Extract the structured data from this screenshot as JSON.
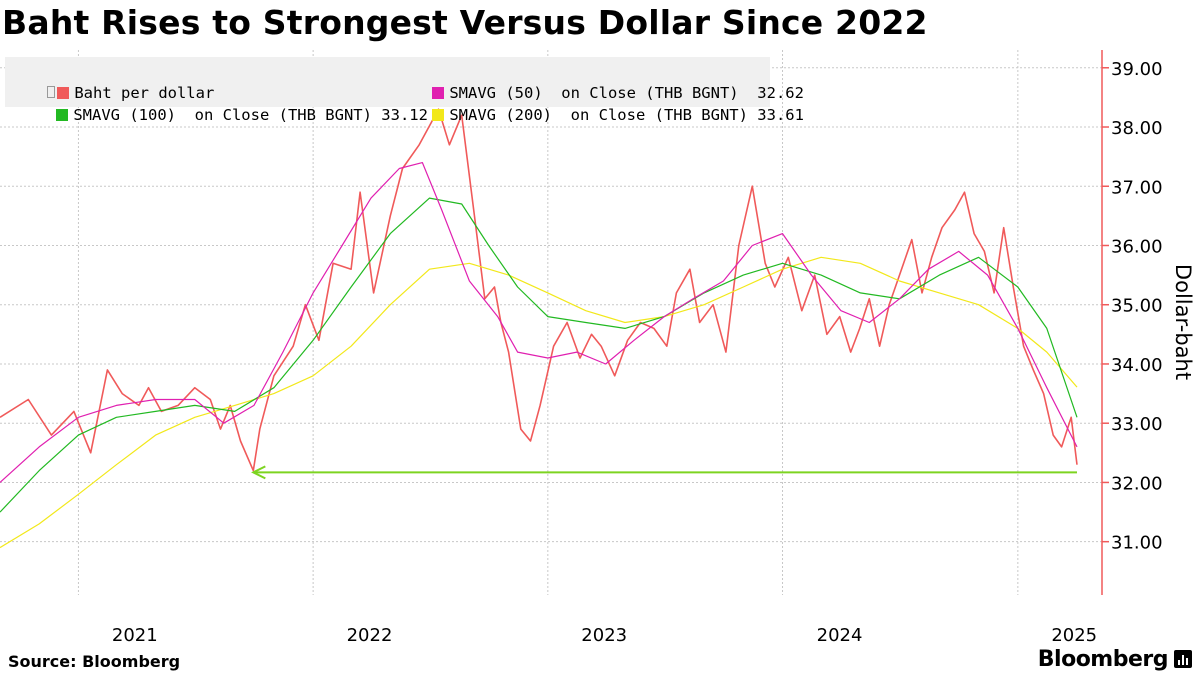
{
  "title": "Baht Rises to Strongest Versus Dollar Since 2022",
  "source": "Source: Bloomberg",
  "brand": "Bloomberg",
  "brand_icon": "bloomberg-terminal-icon",
  "legend": [
    {
      "label": "Baht per dollar",
      "color": "#f05a5a"
    },
    {
      "label": "SMAVG (50)  on Close (THB BGNT)  32.62",
      "color": "#e020b0"
    },
    {
      "label": "SMAVG (100)  on Close (THB BGNT) 33.12",
      "color": "#22b922"
    },
    {
      "label": "SMAVG (200)  on Close (THB BGNT) 33.61",
      "color": "#f2e81a"
    }
  ],
  "chart_data": {
    "type": "line",
    "ylabel": "Dollar-baht",
    "ylim": [
      30.1,
      39.3
    ],
    "yticks": [
      "31.00",
      "32.00",
      "33.00",
      "34.00",
      "35.00",
      "36.00",
      "37.00",
      "38.00",
      "39.00"
    ],
    "xticks": [
      "2021",
      "2022",
      "2023",
      "2024",
      "2025"
    ],
    "x_range": [
      "2020-09-01",
      "2025-04-03"
    ],
    "grid": true,
    "legend_position": "top-left",
    "annotation": {
      "type": "horizontal-arrow",
      "y": 32.17,
      "x_from": "2025-04-03",
      "x_to": "2021-09-30",
      "color": "#7dd420"
    },
    "series": [
      {
        "name": "Baht per dollar",
        "color": "#f05a5a",
        "x": [
          "2020-09-01",
          "2020-10-15",
          "2020-11-20",
          "2020-12-25",
          "2021-01-20",
          "2021-02-15",
          "2021-03-10",
          "2021-04-05",
          "2021-04-20",
          "2021-05-10",
          "2021-06-05",
          "2021-07-01",
          "2021-07-25",
          "2021-08-10",
          "2021-08-25",
          "2021-09-10",
          "2021-09-30",
          "2021-10-10",
          "2021-11-01",
          "2021-12-01",
          "2021-12-20",
          "2022-01-10",
          "2022-02-01",
          "2022-03-01",
          "2022-03-15",
          "2022-04-05",
          "2022-05-01",
          "2022-05-20",
          "2022-06-15",
          "2022-07-15",
          "2022-08-01",
          "2022-08-20",
          "2022-09-10",
          "2022-09-25",
          "2022-10-10",
          "2022-10-20",
          "2022-11-01",
          "2022-11-20",
          "2022-12-05",
          "2022-12-20",
          "2023-01-10",
          "2023-01-31",
          "2023-02-20",
          "2023-03-10",
          "2023-03-25",
          "2023-04-15",
          "2023-05-05",
          "2023-05-25",
          "2023-06-15",
          "2023-07-05",
          "2023-07-20",
          "2023-08-10",
          "2023-08-25",
          "2023-09-15",
          "2023-10-05",
          "2023-10-25",
          "2023-11-15",
          "2023-12-05",
          "2023-12-20",
          "2024-01-10",
          "2024-01-31",
          "2024-02-20",
          "2024-03-10",
          "2024-03-30",
          "2024-04-16",
          "2024-04-30",
          "2024-05-15",
          "2024-05-31",
          "2024-06-15",
          "2024-07-01",
          "2024-07-20",
          "2024-08-05",
          "2024-08-20",
          "2024-09-05",
          "2024-09-25",
          "2024-10-10",
          "2024-10-25",
          "2024-11-10",
          "2024-11-25",
          "2024-12-10",
          "2024-12-25",
          "2025-01-10",
          "2025-01-25",
          "2025-02-10",
          "2025-02-25",
          "2025-03-10",
          "2025-03-25",
          "2025-04-03"
        ],
        "values": [
          33.1,
          33.4,
          32.8,
          33.2,
          32.5,
          33.9,
          33.5,
          33.3,
          33.6,
          33.2,
          33.3,
          33.6,
          33.4,
          32.9,
          33.3,
          32.7,
          32.2,
          32.9,
          33.8,
          34.3,
          35.0,
          34.4,
          35.7,
          35.6,
          36.9,
          35.2,
          36.5,
          37.3,
          37.7,
          38.3,
          37.7,
          38.2,
          36.4,
          35.1,
          35.3,
          34.7,
          34.2,
          32.9,
          32.7,
          33.3,
          34.3,
          34.7,
          34.1,
          34.5,
          34.3,
          33.8,
          34.4,
          34.7,
          34.6,
          34.3,
          35.2,
          35.6,
          34.7,
          35.0,
          34.2,
          36.0,
          37.0,
          35.7,
          35.3,
          35.8,
          34.9,
          35.5,
          34.5,
          34.8,
          34.2,
          34.6,
          35.1,
          34.3,
          35.0,
          35.5,
          36.1,
          35.2,
          35.8,
          36.3,
          36.6,
          36.9,
          36.2,
          35.9,
          35.2,
          36.3,
          35.3,
          34.3,
          33.9,
          33.5,
          32.8,
          32.6,
          33.1,
          32.3
        ]
      },
      {
        "name": "SMAVG (50)  on Close (THB BGNT)",
        "color": "#e020b0",
        "x": [
          "2020-09-01",
          "2020-11-01",
          "2021-01-01",
          "2021-03-01",
          "2021-05-01",
          "2021-07-01",
          "2021-08-15",
          "2021-10-01",
          "2021-11-15",
          "2022-01-01",
          "2022-02-15",
          "2022-04-01",
          "2022-05-15",
          "2022-06-20",
          "2022-07-20",
          "2022-09-01",
          "2022-10-15",
          "2022-11-15",
          "2023-01-01",
          "2023-02-15",
          "2023-04-01",
          "2023-05-15",
          "2023-07-01",
          "2023-08-15",
          "2023-10-01",
          "2023-11-15",
          "2024-01-01",
          "2024-02-15",
          "2024-04-01",
          "2024-05-15",
          "2024-07-01",
          "2024-08-15",
          "2024-10-01",
          "2024-11-15",
          "2025-01-01",
          "2025-02-15",
          "2025-04-03"
        ],
        "values": [
          32.0,
          32.6,
          33.1,
          33.3,
          33.4,
          33.4,
          33.0,
          33.3,
          34.2,
          35.2,
          36.0,
          36.8,
          37.3,
          37.4,
          36.6,
          35.4,
          34.8,
          34.2,
          34.1,
          34.2,
          34.0,
          34.4,
          34.8,
          35.1,
          35.4,
          36.0,
          36.2,
          35.5,
          34.9,
          34.7,
          35.1,
          35.6,
          35.9,
          35.5,
          34.6,
          33.6,
          32.6
        ]
      },
      {
        "name": "SMAVG (100)  on Close (THB BGNT)",
        "color": "#22b922",
        "x": [
          "2020-09-01",
          "2020-11-01",
          "2021-01-01",
          "2021-03-01",
          "2021-05-01",
          "2021-07-01",
          "2021-09-01",
          "2021-11-01",
          "2022-01-01",
          "2022-03-01",
          "2022-05-01",
          "2022-07-01",
          "2022-08-20",
          "2022-10-01",
          "2022-11-15",
          "2023-01-01",
          "2023-03-01",
          "2023-05-01",
          "2023-07-01",
          "2023-09-01",
          "2023-11-01",
          "2024-01-01",
          "2024-03-01",
          "2024-05-01",
          "2024-07-01",
          "2024-09-01",
          "2024-11-01",
          "2025-01-01",
          "2025-02-15",
          "2025-04-03"
        ],
        "values": [
          31.5,
          32.2,
          32.8,
          33.1,
          33.2,
          33.3,
          33.2,
          33.6,
          34.4,
          35.3,
          36.2,
          36.8,
          36.7,
          36.0,
          35.3,
          34.8,
          34.7,
          34.6,
          34.8,
          35.2,
          35.5,
          35.7,
          35.5,
          35.2,
          35.1,
          35.5,
          35.8,
          35.3,
          34.6,
          33.1
        ]
      },
      {
        "name": "SMAVG (200)  on Close (THB BGNT)",
        "color": "#f2e81a",
        "x": [
          "2020-09-01",
          "2020-11-01",
          "2021-01-01",
          "2021-03-01",
          "2021-05-01",
          "2021-07-01",
          "2021-09-01",
          "2021-11-01",
          "2022-01-01",
          "2022-03-01",
          "2022-05-01",
          "2022-07-01",
          "2022-09-01",
          "2022-11-01",
          "2023-01-01",
          "2023-03-01",
          "2023-05-01",
          "2023-07-01",
          "2023-09-01",
          "2023-11-01",
          "2024-01-01",
          "2024-03-01",
          "2024-05-01",
          "2024-07-01",
          "2024-09-01",
          "2024-11-01",
          "2025-01-01",
          "2025-02-15",
          "2025-04-03"
        ],
        "values": [
          30.9,
          31.3,
          31.8,
          32.3,
          32.8,
          33.1,
          33.3,
          33.5,
          33.8,
          34.3,
          35.0,
          35.6,
          35.7,
          35.5,
          35.2,
          34.9,
          34.7,
          34.8,
          35.0,
          35.3,
          35.6,
          35.8,
          35.7,
          35.4,
          35.2,
          35.0,
          34.6,
          34.2,
          33.61
        ]
      }
    ]
  }
}
